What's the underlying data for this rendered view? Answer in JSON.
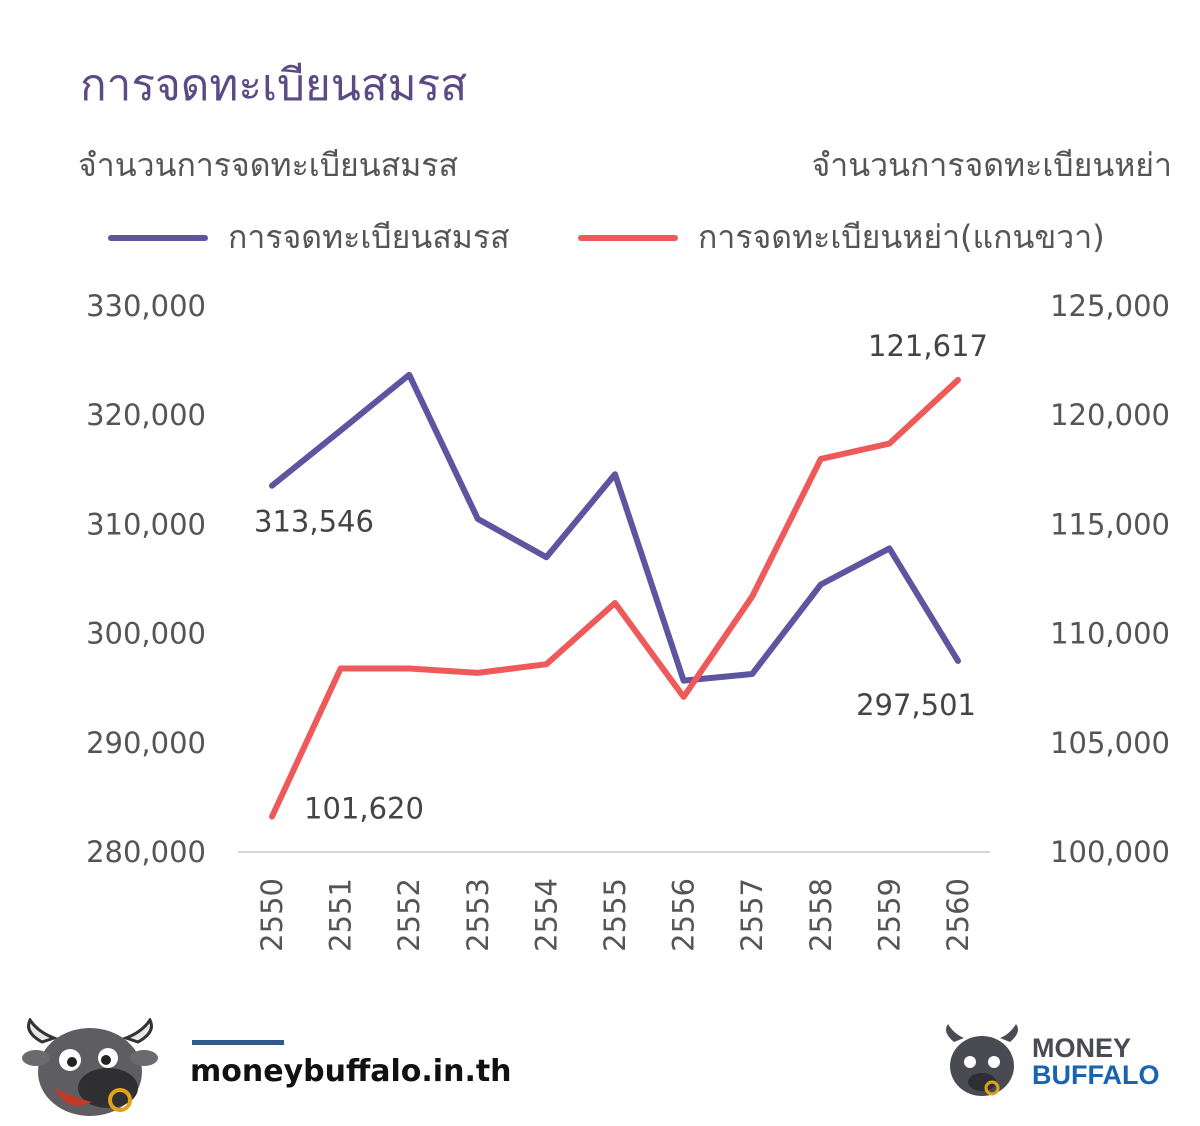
{
  "title": "การจดทะเบียนสมรส",
  "axis_titles": {
    "left": "จำนวนการจดทะเบียนสมรส",
    "right": "จำนวนการจดทะเบียนหย่า"
  },
  "colors": {
    "marriage": "#5e55a0",
    "divorce": "#ee5a5a",
    "axis_text": "#555555",
    "title": "#5b4a86"
  },
  "footer": {
    "site": "moneybuffalo.in.th",
    "brand_line1": "MONEY",
    "brand_line2": "BUFFALO",
    "mascot_icon": "buffalo-mascot-icon",
    "logo_icon": "buffalo-logo-icon"
  },
  "chart_data": {
    "type": "line",
    "categories": [
      "2550",
      "2551",
      "2552",
      "2553",
      "2554",
      "2555",
      "2556",
      "2557",
      "2558",
      "2559",
      "2560"
    ],
    "y_left": {
      "min": 280000,
      "max": 330000,
      "ticks": [
        "280,000",
        "290,000",
        "300,000",
        "310,000",
        "320,000",
        "330,000"
      ]
    },
    "y_right": {
      "min": 100000,
      "max": 125000,
      "ticks": [
        "100,000",
        "105,000",
        "110,000",
        "115,000",
        "120,000",
        "125,000"
      ]
    },
    "series": [
      {
        "name": "การจดทะเบียนสมรส",
        "axis": "left",
        "color": "#5e55a0",
        "values": [
          313546,
          318600,
          323700,
          310500,
          307000,
          314600,
          295700,
          296300,
          304500,
          307800,
          297501
        ]
      },
      {
        "name": "การจดทะเบียนหย่า(แกนขวา)",
        "axis": "right",
        "color": "#ee5a5a",
        "values": [
          101620,
          108400,
          108400,
          108200,
          108600,
          111400,
          107100,
          111700,
          118000,
          118700,
          121617
        ]
      }
    ],
    "data_labels": [
      {
        "series": 0,
        "index": 0,
        "text": "313,546"
      },
      {
        "series": 0,
        "index": 10,
        "text": "297,501"
      },
      {
        "series": 1,
        "index": 0,
        "text": "101,620"
      },
      {
        "series": 1,
        "index": 10,
        "text": "121,617"
      }
    ],
    "legend_position": "top",
    "grid": false
  }
}
